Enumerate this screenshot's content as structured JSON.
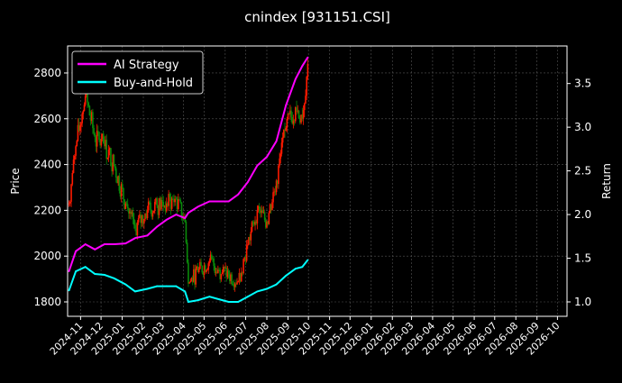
{
  "chart_data": {
    "type": "line",
    "title": "cnindex [931151.CSI]",
    "ylabel": "Price",
    "ylabel_right": "Return",
    "ylim": [
      1737,
      2918
    ],
    "ylim_right": [
      0.835,
      3.93
    ],
    "xlim": [
      "2024-10-13",
      "2026-10-15"
    ],
    "yticks": [
      1800,
      2000,
      2200,
      2400,
      2600,
      2800
    ],
    "yticks_right": [
      "1.0",
      "1.5",
      "2.0",
      "2.5",
      "3.0",
      "3.5"
    ],
    "xticks": [
      "2024-11",
      "2024-12",
      "2025-01",
      "2025-02",
      "2025-03",
      "2025-04",
      "2025-05",
      "2025-06",
      "2025-07",
      "2025-08",
      "2025-09",
      "2025-10",
      "2025-11",
      "2025-12",
      "2026-01",
      "2026-02",
      "2026-03",
      "2026-04",
      "2026-05",
      "2026-06",
      "2026-07",
      "2026-08",
      "2026-09",
      "2026-10"
    ],
    "grid": true,
    "legend_placement": "upper-left",
    "colors": {
      "background": "#000000",
      "up_candle": "#ff1a00",
      "down_candle": "#0a8a0a",
      "ai_strategy": "#ff00ff",
      "buy_and_hold": "#00ffff",
      "grid": "#555555",
      "axis": "#ffffff"
    },
    "x": [
      "2024-10-15",
      "2024-10-25",
      "2024-11-08",
      "2024-11-22",
      "2024-12-06",
      "2024-12-20",
      "2025-01-06",
      "2025-01-20",
      "2025-02-07",
      "2025-02-21",
      "2025-03-07",
      "2025-03-21",
      "2025-04-03",
      "2025-04-08",
      "2025-04-22",
      "2025-05-09",
      "2025-05-23",
      "2025-06-06",
      "2025-06-20",
      "2025-07-04",
      "2025-07-18",
      "2025-08-01",
      "2025-08-15",
      "2025-08-29",
      "2025-09-12",
      "2025-09-22",
      "2025-09-30"
    ],
    "price_close": [
      2230,
      2480,
      2700,
      2520,
      2480,
      2400,
      2230,
      2120,
      2200,
      2220,
      2230,
      2250,
      2150,
      1880,
      1930,
      1980,
      1940,
      1920,
      1890,
      2050,
      2200,
      2150,
      2330,
      2560,
      2650,
      2600,
      2840
    ],
    "series": [
      {
        "name": "AI Strategy",
        "axis": "right",
        "values": [
          1.35,
          1.58,
          1.66,
          1.6,
          1.66,
          1.66,
          1.67,
          1.73,
          1.76,
          1.86,
          1.94,
          2.0,
          1.96,
          2.02,
          2.09,
          2.15,
          2.15,
          2.15,
          2.23,
          2.37,
          2.56,
          2.66,
          2.84,
          3.25,
          3.55,
          3.7,
          3.8
        ]
      },
      {
        "name": "Buy-and-Hold",
        "axis": "right",
        "values": [
          1.13,
          1.35,
          1.4,
          1.32,
          1.31,
          1.27,
          1.2,
          1.12,
          1.15,
          1.18,
          1.18,
          1.18,
          1.12,
          1.0,
          1.02,
          1.06,
          1.03,
          1.0,
          1.0,
          1.06,
          1.12,
          1.15,
          1.2,
          1.3,
          1.38,
          1.4,
          1.48
        ]
      }
    ]
  }
}
